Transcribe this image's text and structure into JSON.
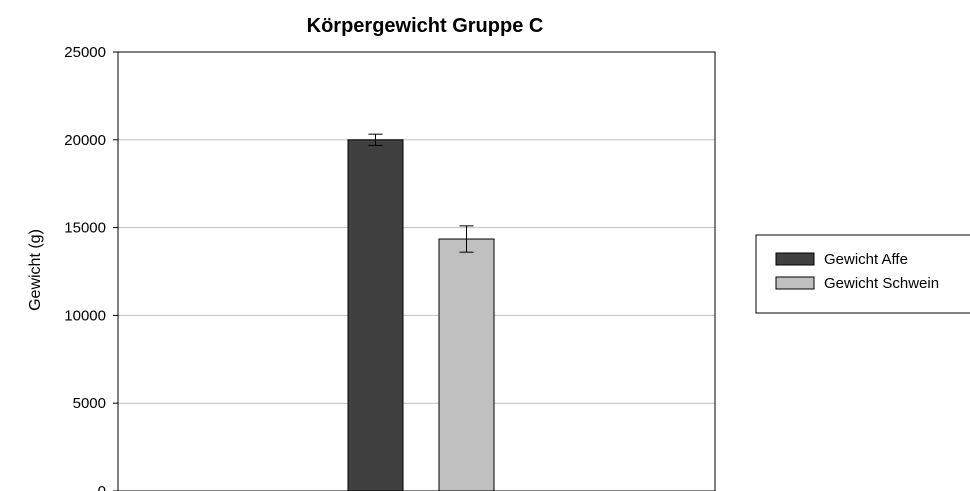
{
  "chart_data": {
    "type": "bar",
    "title": "Körpergewicht Gruppe C",
    "xlabel": "",
    "ylabel": "Gewicht (g)",
    "ylim": [
      0,
      25000
    ],
    "yticks": [
      0,
      5000,
      10000,
      15000,
      20000,
      25000
    ],
    "grid": true,
    "legend_position": "right",
    "series": [
      {
        "name": "Gewicht Affe",
        "value": 20000,
        "error": 320,
        "color": "#404040"
      },
      {
        "name": "Gewicht Schwein",
        "value": 14350,
        "error": 750,
        "color": "#c0c0c0"
      }
    ]
  }
}
